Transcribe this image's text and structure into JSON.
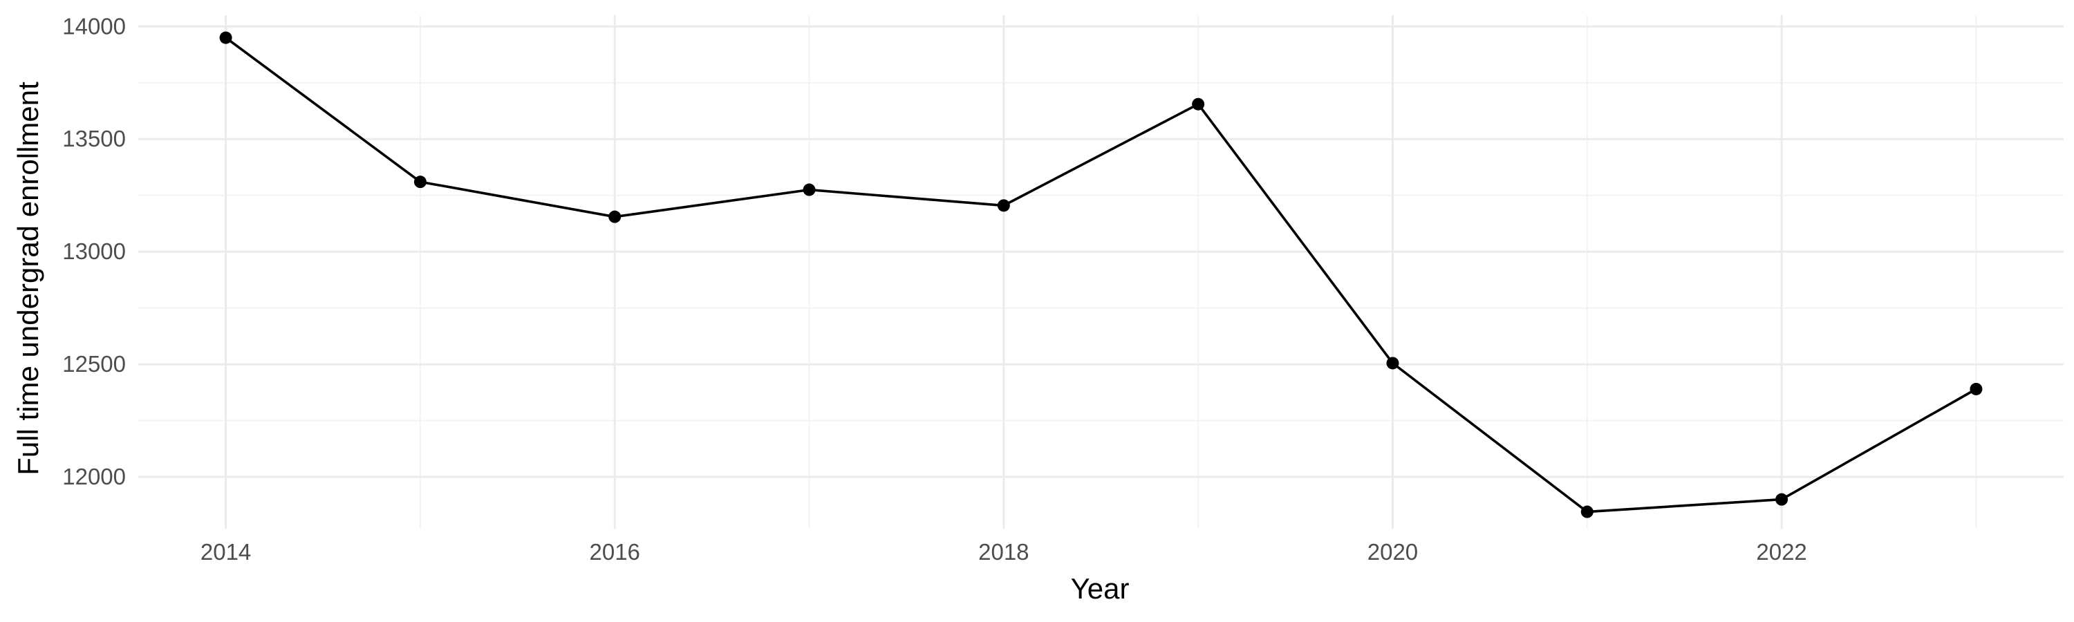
{
  "chart_data": {
    "type": "line",
    "title": "",
    "xlabel": "Year",
    "ylabel": "Full time undergrad enrollment",
    "x": [
      2014,
      2015,
      2016,
      2017,
      2018,
      2019,
      2020,
      2021,
      2022,
      2023
    ],
    "series": [
      {
        "values": [
          13950,
          13310,
          13155,
          13275,
          13205,
          13655,
          12505,
          11845,
          11900,
          12390
        ]
      }
    ],
    "xlim": [
      2013.55,
      2023.45
    ],
    "ylim": [
      11770,
      14050
    ],
    "x_ticks": [
      2014,
      2016,
      2018,
      2020,
      2022
    ],
    "x_tick_labels": [
      "2014",
      "2016",
      "2018",
      "2020",
      "2022"
    ],
    "y_ticks": [
      12000,
      12500,
      13000,
      13500,
      14000
    ],
    "y_tick_labels": [
      "12000",
      "12500",
      "13000",
      "13500",
      "14000"
    ],
    "grid": true,
    "legend": "none",
    "colors": {
      "line": "#000000",
      "grid": "#ebebeb",
      "tick_text": "#4d4d4d"
    }
  }
}
